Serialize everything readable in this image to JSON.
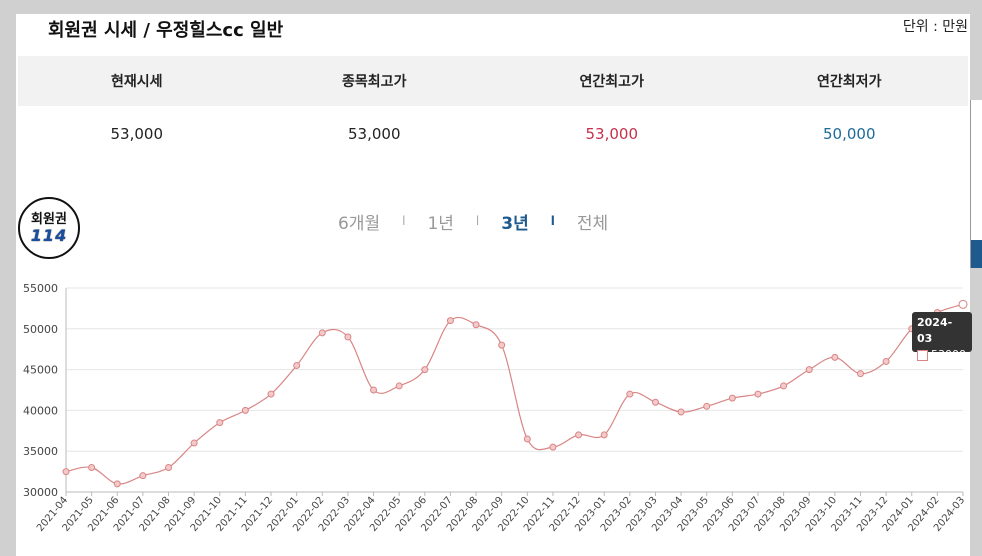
{
  "header": {
    "title": "회원권 시세 / 우정힐스cc 일반",
    "unit": "단위 : 만원"
  },
  "summary": {
    "headers": [
      "현재시세",
      "종목최고가",
      "연간최고가",
      "연간최저가"
    ],
    "values": [
      "53,000",
      "53,000",
      "53,000",
      "50,000"
    ]
  },
  "logo": {
    "line1": "회원권",
    "line2": "114"
  },
  "periods": {
    "items": [
      "6개월",
      "1년",
      "3년",
      "전체"
    ],
    "separator": "l",
    "active": "3년"
  },
  "tooltip": {
    "date": "2024-03",
    "value": "53000"
  },
  "colors": {
    "line": "#d98585",
    "accent_blue": "#1e5a8e",
    "high_red": "#c8304a",
    "low_blue": "#1e6a9a"
  },
  "chart_data": {
    "type": "line",
    "categories": [
      "2021-04",
      "2021-05",
      "2021-06",
      "2021-07",
      "2021-08",
      "2021-09",
      "2021-10",
      "2021-11",
      "2021-12",
      "2022-01",
      "2022-02",
      "2022-03",
      "2022-04",
      "2022-05",
      "2022-06",
      "2022-07",
      "2022-08",
      "2022-09",
      "2022-10",
      "2022-11",
      "2022-12",
      "2023-01",
      "2023-02",
      "2023-03",
      "2023-04",
      "2023-05",
      "2023-06",
      "2023-07",
      "2023-08",
      "2023-09",
      "2023-10",
      "2023-11",
      "2023-12",
      "2024-01",
      "2024-02",
      "2024-03"
    ],
    "values": [
      32500,
      33000,
      31000,
      32000,
      33000,
      36000,
      38500,
      40000,
      42000,
      45500,
      49500,
      49000,
      42500,
      43000,
      45000,
      51000,
      50500,
      48000,
      36500,
      35500,
      37000,
      37000,
      42000,
      41000,
      39800,
      40500,
      41500,
      42000,
      43000,
      45000,
      46500,
      44500,
      46000,
      50000,
      52000,
      53000
    ],
    "ylim": [
      30000,
      55000
    ],
    "yticks": [
      30000,
      35000,
      40000,
      45000,
      50000,
      55000
    ],
    "grid": true
  }
}
